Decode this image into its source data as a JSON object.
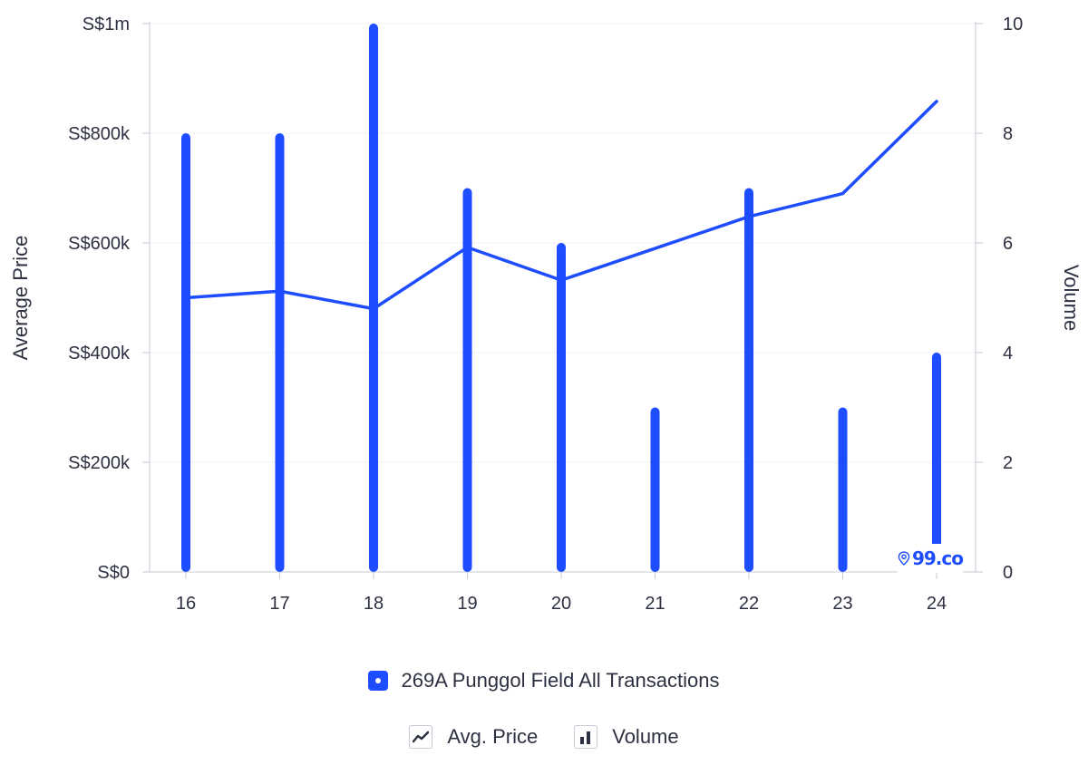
{
  "chart_data": {
    "type": "bar+line",
    "categories": [
      "16",
      "17",
      "18",
      "19",
      "20",
      "21",
      "22",
      "23",
      "24"
    ],
    "series": [
      {
        "name": "Volume",
        "kind": "bar",
        "axis": "right",
        "values": [
          8,
          8,
          10,
          7,
          6,
          3,
          7,
          3,
          4
        ]
      },
      {
        "name": "Avg. Price",
        "kind": "line",
        "axis": "left",
        "values": [
          500000,
          512000,
          480000,
          592000,
          532000,
          590000,
          648000,
          690000,
          858000
        ]
      }
    ],
    "yleft": {
      "label": "Average Price",
      "ylim": [
        0,
        1000000
      ],
      "ticks": [
        0,
        200000,
        400000,
        600000,
        800000,
        1000000
      ],
      "tick_labels": [
        "S$0",
        "S$200k",
        "S$400k",
        "S$600k",
        "S$800k",
        "S$1m"
      ]
    },
    "yright": {
      "label": "Volume",
      "ylim": [
        0,
        10
      ],
      "ticks": [
        0,
        2,
        4,
        6,
        8,
        10
      ],
      "tick_labels": [
        "0",
        "2",
        "4",
        "6",
        "8",
        "10"
      ]
    },
    "xlabel": "",
    "grid": true,
    "colors": {
      "series": "#1e4dff",
      "axis": "#c7cad6",
      "grid": "#f0f1f5",
      "text": "#2d3142"
    }
  },
  "legend": {
    "series_label": "269A Punggol Field All Transactions",
    "types": [
      {
        "label": "Avg. Price",
        "icon": "line-chart-icon"
      },
      {
        "label": "Volume",
        "icon": "bar-chart-icon"
      }
    ]
  },
  "watermark": {
    "text": "99.co",
    "icon": "location-pin-icon"
  }
}
